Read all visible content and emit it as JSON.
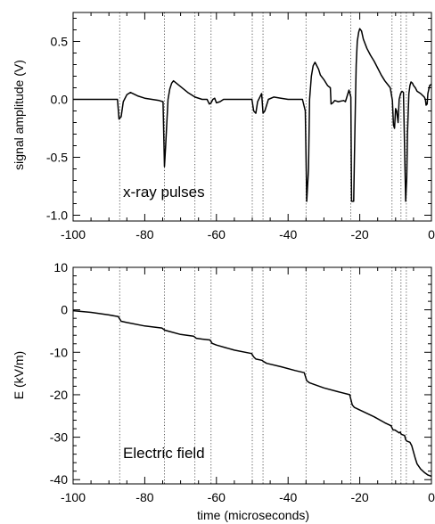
{
  "chart_data": [
    {
      "type": "line",
      "panel": "top",
      "annotation": "x-ray pulses",
      "xlabel": "",
      "ylabel": "signal amplitude (V)",
      "xlim": [
        -100,
        0
      ],
      "ylim": [
        -1.05,
        0.75
      ],
      "xticks": [
        "-100",
        "-80",
        "-60",
        "-40",
        "-20",
        "0"
      ],
      "yticks": [
        "-1.0",
        "-0.5",
        "0.0",
        "0.5"
      ],
      "ytick_values": [
        -1.0,
        -0.5,
        0.0,
        0.5
      ],
      "x": [
        -100,
        -90,
        -87.6,
        -87.2,
        -86.6,
        -86,
        -85,
        -84,
        -82,
        -80,
        -78,
        -76,
        -74.9,
        -74.5,
        -74.2,
        -73.5,
        -73,
        -72.5,
        -72,
        -70,
        -68,
        -66,
        -64,
        -62.6,
        -62,
        -61.5,
        -61,
        -60.5,
        -60,
        -59,
        -58,
        -56,
        -54,
        -52,
        -50.1,
        -49.6,
        -49,
        -48.5,
        -47.4,
        -47,
        -46.5,
        -45.5,
        -44,
        -42,
        -40,
        -38,
        -36,
        -35.2,
        -34.8,
        -34.3,
        -34,
        -33.5,
        -33,
        -32.5,
        -31.5,
        -31,
        -30,
        -29,
        -28.2,
        -28,
        -27.5,
        -27,
        -26,
        -24.5,
        -24,
        -23,
        -22.5,
        -22.3,
        -22,
        -21.7,
        -21.5,
        -21.2,
        -21,
        -20.7,
        -20.3,
        -20,
        -19.5,
        -19,
        -18,
        -17,
        -16,
        -15,
        -14,
        -13,
        -12,
        -11.5,
        -10.9,
        -10.6,
        -10.3,
        -10,
        -9.7,
        -9.3,
        -9,
        -8.6,
        -8.2,
        -7.8,
        -7.2,
        -6.9,
        -6.7,
        -6.3,
        -6,
        -5.7,
        -5.3,
        -5,
        -4.5,
        -4,
        -3,
        -2,
        -1.7,
        -1.5,
        -1.2,
        -1,
        -0.5,
        0
      ],
      "y": [
        0.0,
        0.0,
        0.0,
        -0.17,
        -0.15,
        -0.02,
        0.04,
        0.06,
        0.03,
        0.01,
        0.0,
        -0.01,
        -0.02,
        -0.58,
        -0.42,
        0.0,
        0.09,
        0.14,
        0.16,
        0.11,
        0.06,
        0.02,
        0.0,
        0.0,
        -0.04,
        -0.03,
        0.0,
        0.01,
        -0.03,
        -0.02,
        0.0,
        0.0,
        0.0,
        0.0,
        0.0,
        -0.1,
        -0.12,
        -0.02,
        0.05,
        -0.12,
        -0.1,
        0.0,
        0.02,
        0.01,
        0.0,
        0.0,
        0.0,
        -0.1,
        -0.88,
        -0.6,
        0.0,
        0.2,
        0.29,
        0.32,
        0.26,
        0.21,
        0.17,
        0.12,
        0.1,
        -0.04,
        -0.03,
        -0.01,
        -0.02,
        -0.01,
        -0.02,
        0.08,
        0.02,
        -0.88,
        -0.88,
        -0.88,
        -0.5,
        0.0,
        0.3,
        0.5,
        0.58,
        0.61,
        0.59,
        0.52,
        0.44,
        0.38,
        0.33,
        0.27,
        0.21,
        0.16,
        0.12,
        0.1,
        -0.01,
        -0.22,
        -0.25,
        -0.08,
        -0.1,
        -0.2,
        0.0,
        0.05,
        0.07,
        0.06,
        -0.88,
        -0.68,
        -0.3,
        0.05,
        0.12,
        0.15,
        0.14,
        0.12,
        0.1,
        0.07,
        0.05,
        0.02,
        0.0,
        -0.05,
        -0.04,
        0.05,
        0.12,
        0.13
      ],
      "vlines": [
        -87,
        -74.5,
        -66,
        -61.5,
        -50,
        -47,
        -35,
        -22.5,
        -11,
        -8.5,
        -7
      ]
    },
    {
      "type": "line",
      "panel": "bottom",
      "annotation": "Electric field",
      "xlabel": "time (microseconds)",
      "ylabel": "E  (kV/m)",
      "xlim": [
        -100,
        0
      ],
      "ylim": [
        -41,
        10
      ],
      "xticks": [
        "-100",
        "-80",
        "-60",
        "-40",
        "-20",
        "0"
      ],
      "yticks": [
        "-40",
        "-30",
        "-20",
        "-10",
        "0",
        "10"
      ],
      "ytick_values": [
        -40,
        -30,
        -20,
        -10,
        0,
        10
      ],
      "x": [
        -100,
        -95,
        -90,
        -87.4,
        -86.6,
        -85,
        -80,
        -75.2,
        -74.4,
        -73.5,
        -70,
        -66.4,
        -65.6,
        -64,
        -61.8,
        -61.2,
        -60,
        -55,
        -50.2,
        -49.6,
        -49,
        -47.3,
        -46.8,
        -46,
        -42,
        -38,
        -35.5,
        -34.8,
        -34,
        -30,
        -26,
        -22.8,
        -22.1,
        -21.5,
        -20,
        -16,
        -13,
        -11.3,
        -10.7,
        -10.2,
        -9,
        -8.7,
        -8.4,
        -7.5,
        -7.2,
        -6.9,
        -6,
        -5.5,
        -4.5,
        -4,
        -3,
        -2,
        -1,
        0
      ],
      "y": [
        -0.2,
        -0.6,
        -1.2,
        -1.6,
        -2.7,
        -3.0,
        -3.8,
        -4.3,
        -4.8,
        -5.0,
        -5.8,
        -6.2,
        -6.7,
        -6.9,
        -7.1,
        -7.9,
        -8.3,
        -9.5,
        -10.3,
        -11.1,
        -11.6,
        -11.9,
        -12.2,
        -12.6,
        -13.4,
        -14.3,
        -14.8,
        -16.7,
        -17.2,
        -18.4,
        -19.3,
        -20.0,
        -22.4,
        -23.0,
        -23.6,
        -25.2,
        -26.6,
        -27.3,
        -28.3,
        -28.3,
        -29.0,
        -28.8,
        -29.3,
        -29.6,
        -30.6,
        -30.9,
        -31.2,
        -32.0,
        -35.0,
        -36.3,
        -37.5,
        -38.3,
        -38.9,
        -39.2
      ],
      "vlines": [
        -87,
        -74.5,
        -66,
        -61.5,
        -50,
        -47,
        -35,
        -22.5,
        -11,
        -8.5,
        -7
      ]
    }
  ]
}
